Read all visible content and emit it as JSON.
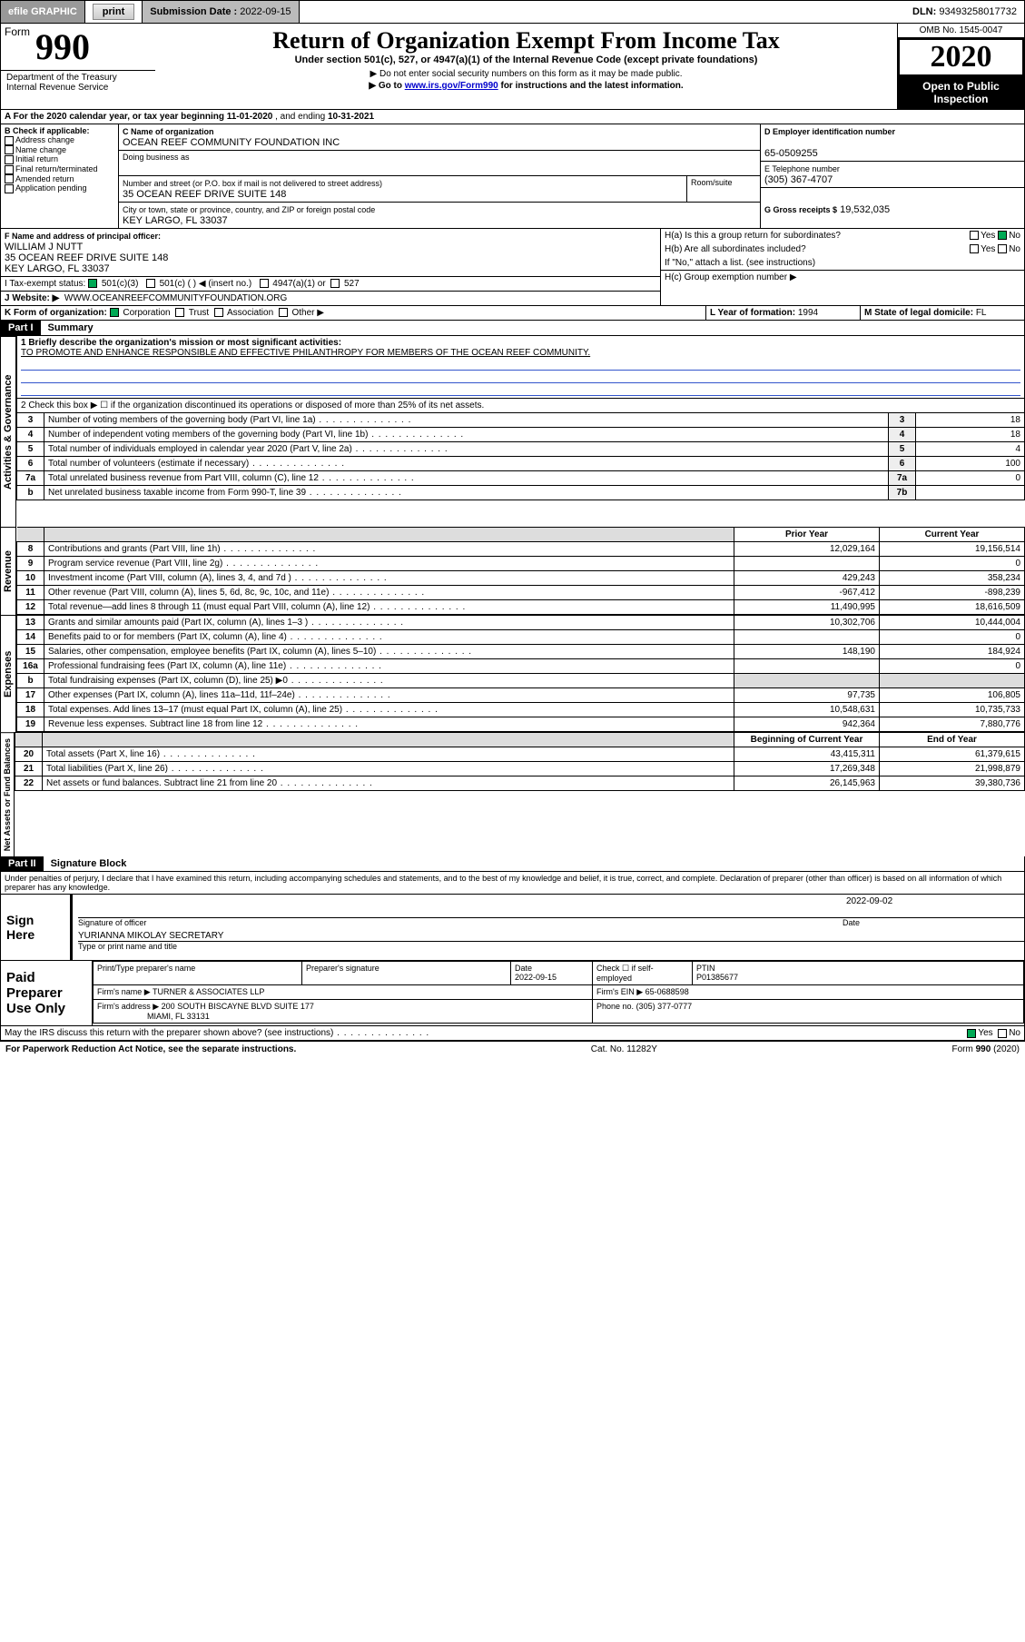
{
  "topbar": {
    "efile": "efile GRAPHIC",
    "print": "print",
    "subdate_label": "Submission Date :",
    "subdate": "2022-09-15",
    "dln_label": "DLN:",
    "dln": "93493258017732"
  },
  "header": {
    "form_word": "Form",
    "form_num": "990",
    "dept1": "Department of the Treasury",
    "dept2": "Internal Revenue Service",
    "title": "Return of Organization Exempt From Income Tax",
    "sub1": "Under section 501(c), 527, or 4947(a)(1) of the Internal Revenue Code (except private foundations)",
    "sub2": "▶ Do not enter social security numbers on this form as it may be made public.",
    "sub3_pre": "▶ Go to ",
    "sub3_link": "www.irs.gov/Form990",
    "sub3_post": " for instructions and the latest information.",
    "omb": "OMB No. 1545-0047",
    "year": "2020",
    "openpub": "Open to Public Inspection"
  },
  "a_line": {
    "prefix": "A For the 2020 calendar year, or tax year beginning ",
    "begin": "11-01-2020",
    "mid": " , and ending ",
    "end": "10-31-2021"
  },
  "b": {
    "label": "B Check if applicable:",
    "opts": [
      "Address change",
      "Name change",
      "Initial return",
      "Final return/terminated",
      "Amended return",
      "Application pending"
    ]
  },
  "c": {
    "name_label": "C Name of organization",
    "name": "OCEAN REEF COMMUNITY FOUNDATION INC",
    "dba_label": "Doing business as",
    "street_label": "Number and street (or P.O. box if mail is not delivered to street address)",
    "room_label": "Room/suite",
    "street": "35 OCEAN REEF DRIVE SUITE 148",
    "city_label": "City or town, state or province, country, and ZIP or foreign postal code",
    "city": "KEY LARGO, FL  33037"
  },
  "d": {
    "label": "D Employer identification number",
    "val": "65-0509255"
  },
  "e": {
    "label": "E Telephone number",
    "val": "(305) 367-4707"
  },
  "f": {
    "label": "F Name and address of principal officer:",
    "name": "WILLIAM J NUTT",
    "addr1": "35 OCEAN REEF DRIVE SUITE 148",
    "addr2": "KEY LARGO, FL  33037"
  },
  "g": {
    "label": "G Gross receipts $",
    "val": "19,532,035"
  },
  "h": {
    "a_label": "H(a)  Is this a group return for subordinates?",
    "b_label": "H(b)  Are all subordinates included?",
    "note": "If \"No,\" attach a list. (see instructions)",
    "c_label": "H(c)  Group exemption number ▶"
  },
  "i": {
    "label": "I   Tax-exempt status:",
    "opt1": "501(c)(3)",
    "opt2": "501(c) (  ) ◀ (insert no.)",
    "opt3": "4947(a)(1) or",
    "opt4": "527"
  },
  "j": {
    "label": "J   Website: ▶",
    "val": "WWW.OCEANREEFCOMMUNITYFOUNDATION.ORG"
  },
  "k": {
    "label": "K Form of organization:",
    "o1": "Corporation",
    "o2": "Trust",
    "o3": "Association",
    "o4": "Other ▶"
  },
  "l": {
    "label": "L Year of formation:",
    "val": "1994"
  },
  "m": {
    "label": "M State of legal domicile:",
    "val": "FL"
  },
  "part1": {
    "tag": "Part I",
    "title": "Summary"
  },
  "summary": {
    "vert1": "Activities & Governance",
    "vert2": "Revenue",
    "vert3": "Expenses",
    "vert4": "Net Assets or Fund Balances",
    "l1_label": "1  Briefly describe the organization's mission or most significant activities:",
    "l1_text": "TO PROMOTE AND ENHANCE RESPONSIBLE AND EFFECTIVE PHILANTHROPY FOR MEMBERS OF THE OCEAN REEF COMMUNITY.",
    "l2": "2   Check this box ▶ ☐  if the organization discontinued its operations or disposed of more than 25% of its net assets.",
    "lines_gov": [
      {
        "n": "3",
        "t": "Number of voting members of the governing body (Part VI, line 1a)",
        "rn": "3",
        "v": "18"
      },
      {
        "n": "4",
        "t": "Number of independent voting members of the governing body (Part VI, line 1b)",
        "rn": "4",
        "v": "18"
      },
      {
        "n": "5",
        "t": "Total number of individuals employed in calendar year 2020 (Part V, line 2a)",
        "rn": "5",
        "v": "4"
      },
      {
        "n": "6",
        "t": "Total number of volunteers (estimate if necessary)",
        "rn": "6",
        "v": "100"
      },
      {
        "n": "7a",
        "t": "Total unrelated business revenue from Part VIII, column (C), line 12",
        "rn": "7a",
        "v": "0"
      },
      {
        "n": "b",
        "t": "Net unrelated business taxable income from Form 990-T, line 39",
        "rn": "7b",
        "v": ""
      }
    ],
    "col_prior": "Prior Year",
    "col_current": "Current Year",
    "lines_rev": [
      {
        "n": "8",
        "t": "Contributions and grants (Part VIII, line 1h)",
        "p": "12,029,164",
        "c": "19,156,514"
      },
      {
        "n": "9",
        "t": "Program service revenue (Part VIII, line 2g)",
        "p": "",
        "c": "0"
      },
      {
        "n": "10",
        "t": "Investment income (Part VIII, column (A), lines 3, 4, and 7d )",
        "p": "429,243",
        "c": "358,234"
      },
      {
        "n": "11",
        "t": "Other revenue (Part VIII, column (A), lines 5, 6d, 8c, 9c, 10c, and 11e)",
        "p": "-967,412",
        "c": "-898,239"
      },
      {
        "n": "12",
        "t": "Total revenue—add lines 8 through 11 (must equal Part VIII, column (A), line 12)",
        "p": "11,490,995",
        "c": "18,616,509"
      }
    ],
    "lines_exp": [
      {
        "n": "13",
        "t": "Grants and similar amounts paid (Part IX, column (A), lines 1–3 )",
        "p": "10,302,706",
        "c": "10,444,004"
      },
      {
        "n": "14",
        "t": "Benefits paid to or for members (Part IX, column (A), line 4)",
        "p": "",
        "c": "0"
      },
      {
        "n": "15",
        "t": "Salaries, other compensation, employee benefits (Part IX, column (A), lines 5–10)",
        "p": "148,190",
        "c": "184,924"
      },
      {
        "n": "16a",
        "t": "Professional fundraising fees (Part IX, column (A), line 11e)",
        "p": "",
        "c": "0"
      },
      {
        "n": "b",
        "t": "Total fundraising expenses (Part IX, column (D), line 25) ▶0",
        "p": "",
        "c": "",
        "shade": true
      },
      {
        "n": "17",
        "t": "Other expenses (Part IX, column (A), lines 11a–11d, 11f–24e)",
        "p": "97,735",
        "c": "106,805"
      },
      {
        "n": "18",
        "t": "Total expenses. Add lines 13–17 (must equal Part IX, column (A), line 25)",
        "p": "10,548,631",
        "c": "10,735,733"
      },
      {
        "n": "19",
        "t": "Revenue less expenses. Subtract line 18 from line 12",
        "p": "942,364",
        "c": "7,880,776"
      }
    ],
    "col_boy": "Beginning of Current Year",
    "col_eoy": "End of Year",
    "lines_net": [
      {
        "n": "20",
        "t": "Total assets (Part X, line 16)",
        "p": "43,415,311",
        "c": "61,379,615"
      },
      {
        "n": "21",
        "t": "Total liabilities (Part X, line 26)",
        "p": "17,269,348",
        "c": "21,998,879"
      },
      {
        "n": "22",
        "t": "Net assets or fund balances. Subtract line 21 from line 20",
        "p": "26,145,963",
        "c": "39,380,736"
      }
    ]
  },
  "part2": {
    "tag": "Part II",
    "title": "Signature Block"
  },
  "sig": {
    "penalty": "Under penalties of perjury, I declare that I have examined this return, including accompanying schedules and statements, and to the best of my knowledge and belief, it is true, correct, and complete. Declaration of preparer (other than officer) is based on all information of which preparer has any knowledge.",
    "sign_here": "Sign Here",
    "sig_officer": "Signature of officer",
    "date_label": "Date",
    "date": "2022-09-02",
    "officer": "YURIANNA MIKOLAY SECRETARY",
    "type_label": "Type or print name and title",
    "paid": "Paid Preparer Use Only",
    "prep_name_label": "Print/Type preparer's name",
    "prep_sig_label": "Preparer's signature",
    "prep_date_label": "Date",
    "prep_date": "2022-09-15",
    "check_se": "Check ☐ if self-employed",
    "ptin_label": "PTIN",
    "ptin": "P01385677",
    "firm_name_label": "Firm's name    ▶",
    "firm_name": "TURNER & ASSOCIATES LLP",
    "firm_ein_label": "Firm's EIN ▶",
    "firm_ein": "65-0688598",
    "firm_addr_label": "Firm's address ▶",
    "firm_addr1": "200 SOUTH BISCAYNE BLVD SUITE 177",
    "firm_addr2": "MIAMI, FL  33131",
    "phone_label": "Phone no.",
    "phone": "(305) 377-0777",
    "discuss": "May the IRS discuss this return with the preparer shown above? (see instructions)"
  },
  "footer": {
    "left": "For Paperwork Reduction Act Notice, see the separate instructions.",
    "mid": "Cat. No. 11282Y",
    "right": "Form 990 (2020)"
  }
}
